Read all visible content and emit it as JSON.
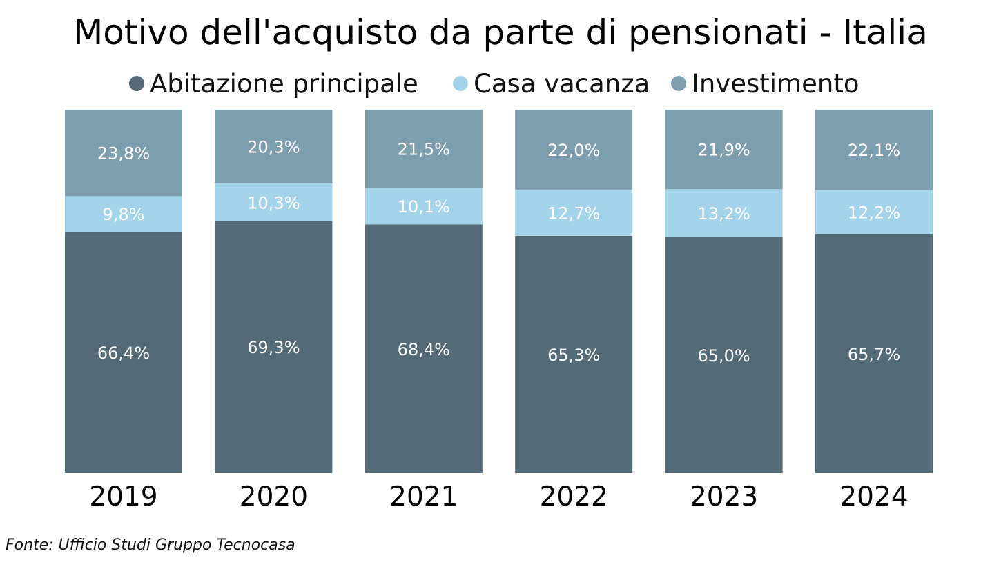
{
  "chart_data": {
    "type": "bar",
    "stacked": true,
    "title": "Motivo dell'acquisto da parte di pensionati - Italia",
    "source": "Fonte: Ufficio Studi Gruppo Tecnocasa",
    "xlabel": "",
    "ylabel": "",
    "ylim": [
      0,
      100
    ],
    "grid": false,
    "legend_position": "top-center",
    "categories": [
      "2019",
      "2020",
      "2021",
      "2022",
      "2023",
      "2024"
    ],
    "series": [
      {
        "name": "Abitazione principale",
        "color": "#546a76",
        "values": [
          66.4,
          69.3,
          68.4,
          65.3,
          65.0,
          65.7
        ],
        "labels": [
          "66,4%",
          "69,3%",
          "68,4%",
          "65,3%",
          "65,0%",
          "65,7%"
        ]
      },
      {
        "name": "Casa vacanza",
        "color": "#a4d4ea",
        "values": [
          9.8,
          10.3,
          10.1,
          12.7,
          13.2,
          12.2
        ],
        "labels": [
          "9,8%",
          "10,3%",
          "10,1%",
          "12,7%",
          "13,2%",
          "12,2%"
        ]
      },
      {
        "name": "Investimento",
        "color": "#7c9eae",
        "values": [
          23.8,
          20.3,
          21.5,
          22.0,
          21.9,
          22.1
        ],
        "labels": [
          "23,8%",
          "20,3%",
          "21,5%",
          "22,0%",
          "21,9%",
          "22,1%"
        ]
      }
    ]
  }
}
